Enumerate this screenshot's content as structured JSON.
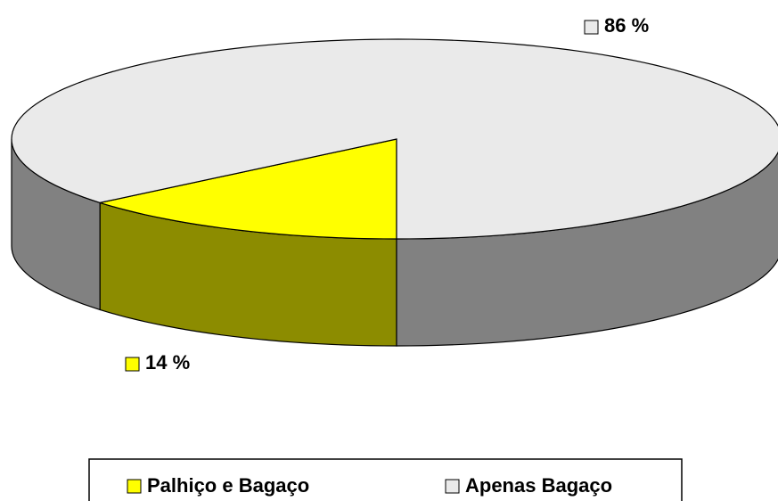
{
  "chart_data": {
    "type": "pie3d",
    "categories": [
      "Palhiço e Bagaço",
      "Apenas Bagaço"
    ],
    "values": [
      14,
      86
    ],
    "value_labels": [
      "14 %",
      "86 %"
    ],
    "colors": [
      "#ffff00",
      "#eaeaea"
    ],
    "legend": "bottom"
  }
}
